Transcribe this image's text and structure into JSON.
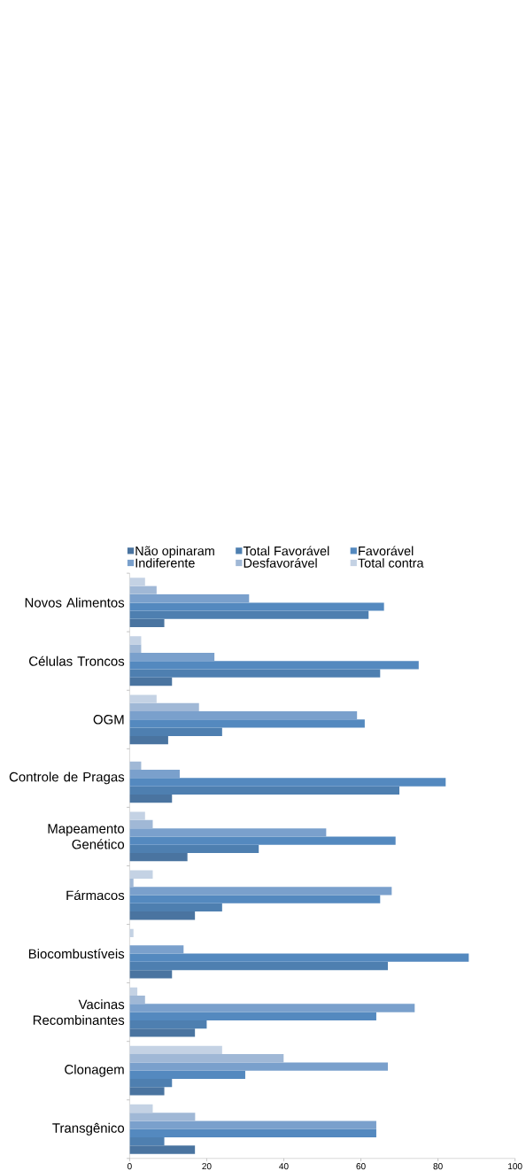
{
  "chart_data": {
    "type": "bar",
    "orientation": "horizontal",
    "categories": [
      "Novos Alimentos",
      "Células Troncos",
      "OGM",
      "Controle de Pragas",
      "Mapeamento Genético",
      "Fármacos",
      "Biocombustíveis",
      "Vacinas Recombinantes",
      "Clonagem",
      "Transgênico"
    ],
    "series": [
      {
        "name": "Não opinaram",
        "color": "#4a74a0",
        "values": [
          9,
          11,
          10,
          11,
          15,
          17,
          11,
          17,
          9,
          17
        ]
      },
      {
        "name": "Total Favorável",
        "color": "#4e7fb0",
        "values": [
          62,
          65,
          24,
          70,
          33.5,
          24,
          67,
          20,
          11,
          9
        ]
      },
      {
        "name": "Favorável",
        "color": "#5489bf",
        "values": [
          66,
          75,
          61,
          82,
          69,
          65,
          88,
          64,
          30,
          64
        ]
      },
      {
        "name": "Indiferente",
        "color": "#7aa0cc",
        "values": [
          31,
          22,
          59,
          13,
          51,
          68,
          14,
          74,
          67,
          64
        ]
      },
      {
        "name": "Desfavorável",
        "color": "#a0b8d6",
        "values": [
          7,
          3,
          18,
          3,
          6,
          1,
          0,
          4,
          40,
          17
        ]
      },
      {
        "name": "Total contra",
        "color": "#c4d2e4",
        "values": [
          4,
          3,
          7,
          0,
          4,
          6,
          1,
          2,
          24,
          6
        ]
      }
    ],
    "xlim": [
      0,
      100
    ],
    "xticks": [
      0,
      20,
      40,
      60,
      80,
      100
    ],
    "grid": false,
    "legend": "top"
  }
}
